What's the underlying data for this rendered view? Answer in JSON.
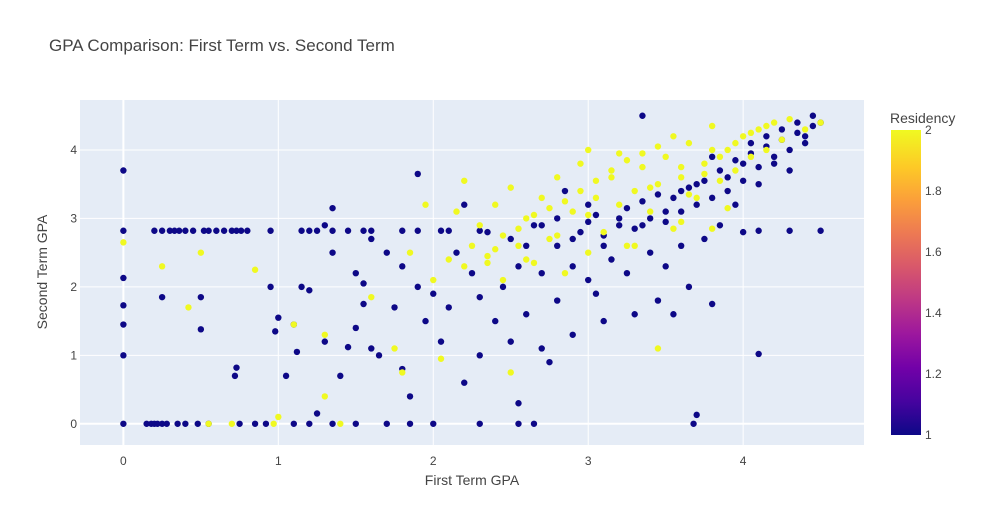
{
  "chart_data": {
    "type": "scatter",
    "title": "GPA Comparison: First Term vs. Second Term",
    "xlabel": "First Term GPA",
    "ylabel": "Second Term GPA",
    "xlim": [
      -0.28,
      4.78
    ],
    "ylim": [
      -0.31,
      4.73
    ],
    "x_ticks": [
      0,
      1,
      2,
      3,
      4
    ],
    "y_ticks": [
      0,
      1,
      2,
      3,
      4
    ],
    "grid": true,
    "colorbar": {
      "title": "Residency",
      "min": 1,
      "max": 2,
      "ticks": [
        "1",
        "1.2",
        "1.4",
        "1.6",
        "1.8",
        "2"
      ],
      "colorscale": [
        "#0d0887",
        "#46039f",
        "#7201a8",
        "#9c179e",
        "#bd3786",
        "#d8576b",
        "#ed7953",
        "#fb9f3a",
        "#fdca26",
        "#f0f921"
      ]
    },
    "colors": {
      "residency_1": "#0d0887",
      "residency_2": "#f0f921",
      "plot_bg": "#e5ecf6",
      "grid": "#ffffff"
    },
    "series": [
      {
        "residency": 1,
        "points": [
          [
            0,
            0
          ],
          [
            0,
            1.0
          ],
          [
            0,
            1.45
          ],
          [
            0,
            1.73
          ],
          [
            0,
            2.13
          ],
          [
            0,
            2.82
          ],
          [
            0,
            3.7
          ],
          [
            0.15,
            0
          ],
          [
            0.18,
            0
          ],
          [
            0.2,
            0
          ],
          [
            0.22,
            0
          ],
          [
            0.25,
            0
          ],
          [
            0.28,
            0
          ],
          [
            0.35,
            0
          ],
          [
            0.4,
            0
          ],
          [
            0.48,
            0
          ],
          [
            0.55,
            0
          ],
          [
            0.75,
            0
          ],
          [
            0.85,
            0
          ],
          [
            0.92,
            0
          ],
          [
            1.1,
            0
          ],
          [
            1.2,
            0
          ],
          [
            1.35,
            0
          ],
          [
            1.5,
            0
          ],
          [
            1.7,
            0
          ],
          [
            1.85,
            0
          ],
          [
            2.0,
            0
          ],
          [
            2.3,
            0
          ],
          [
            2.55,
            0
          ],
          [
            2.65,
            0
          ],
          [
            3.68,
            0
          ],
          [
            3.7,
            0.13
          ],
          [
            0.2,
            2.82
          ],
          [
            0.25,
            2.82
          ],
          [
            0.3,
            2.82
          ],
          [
            0.33,
            2.82
          ],
          [
            0.36,
            2.82
          ],
          [
            0.4,
            2.82
          ],
          [
            0.45,
            2.82
          ],
          [
            0.52,
            2.82
          ],
          [
            0.55,
            2.82
          ],
          [
            0.6,
            2.82
          ],
          [
            0.65,
            2.82
          ],
          [
            0.7,
            2.82
          ],
          [
            0.73,
            2.82
          ],
          [
            0.76,
            2.82
          ],
          [
            0.8,
            2.82
          ],
          [
            0.95,
            2.82
          ],
          [
            1.15,
            2.82
          ],
          [
            1.2,
            2.82
          ],
          [
            1.25,
            2.82
          ],
          [
            1.35,
            2.82
          ],
          [
            1.45,
            2.82
          ],
          [
            1.55,
            2.82
          ],
          [
            1.6,
            2.82
          ],
          [
            1.8,
            2.82
          ],
          [
            1.9,
            2.82
          ],
          [
            2.05,
            2.82
          ],
          [
            2.1,
            2.82
          ],
          [
            2.3,
            2.82
          ],
          [
            4.1,
            2.82
          ],
          [
            4.3,
            2.82
          ],
          [
            4.5,
            2.82
          ],
          [
            0.25,
            1.85
          ],
          [
            0.5,
            1.85
          ],
          [
            0.5,
            1.38
          ],
          [
            0.72,
            0.7
          ],
          [
            0.73,
            0.82
          ],
          [
            0.95,
            2.0
          ],
          [
            1.0,
            1.55
          ],
          [
            0.98,
            1.35
          ],
          [
            1.05,
            0.7
          ],
          [
            1.1,
            1.45
          ],
          [
            1.12,
            1.05
          ],
          [
            1.15,
            2.0
          ],
          [
            1.2,
            1.95
          ],
          [
            1.25,
            0.15
          ],
          [
            1.3,
            2.9
          ],
          [
            1.3,
            1.2
          ],
          [
            1.35,
            3.15
          ],
          [
            1.35,
            2.5
          ],
          [
            1.4,
            0.7
          ],
          [
            1.45,
            1.12
          ],
          [
            1.5,
            2.2
          ],
          [
            1.5,
            1.4
          ],
          [
            1.55,
            1.75
          ],
          [
            1.55,
            2.05
          ],
          [
            1.6,
            1.1
          ],
          [
            1.6,
            2.7
          ],
          [
            1.65,
            1.0
          ],
          [
            1.7,
            2.5
          ],
          [
            1.75,
            1.7
          ],
          [
            1.8,
            2.3
          ],
          [
            1.8,
            0.8
          ],
          [
            1.85,
            0.4
          ],
          [
            1.9,
            3.65
          ],
          [
            1.9,
            2.0
          ],
          [
            1.95,
            1.5
          ],
          [
            2.0,
            1.9
          ],
          [
            2.05,
            1.2
          ],
          [
            2.1,
            1.7
          ],
          [
            2.15,
            2.5
          ],
          [
            2.2,
            0.6
          ],
          [
            2.2,
            3.2
          ],
          [
            2.25,
            2.2
          ],
          [
            2.3,
            1.0
          ],
          [
            2.3,
            1.85
          ],
          [
            2.35,
            2.8
          ],
          [
            2.4,
            1.5
          ],
          [
            2.45,
            2.0
          ],
          [
            2.5,
            2.7
          ],
          [
            2.5,
            1.2
          ],
          [
            2.55,
            2.3
          ],
          [
            2.55,
            0.3
          ],
          [
            2.6,
            1.6
          ],
          [
            2.65,
            2.9
          ],
          [
            2.7,
            1.1
          ],
          [
            2.7,
            2.2
          ],
          [
            2.75,
            0.9
          ],
          [
            2.8,
            1.8
          ],
          [
            2.8,
            2.6
          ],
          [
            2.85,
            3.4
          ],
          [
            2.9,
            2.3
          ],
          [
            2.9,
            1.3
          ],
          [
            2.95,
            2.8
          ],
          [
            3.0,
            2.1
          ],
          [
            3.0,
            3.2
          ],
          [
            3.05,
            1.9
          ],
          [
            3.1,
            2.6
          ],
          [
            3.1,
            1.5
          ],
          [
            3.15,
            2.4
          ],
          [
            3.2,
            3.0
          ],
          [
            3.25,
            2.2
          ],
          [
            3.3,
            1.6
          ],
          [
            3.35,
            4.5
          ],
          [
            3.35,
            2.9
          ],
          [
            3.4,
            2.5
          ],
          [
            3.45,
            1.8
          ],
          [
            3.5,
            3.1
          ],
          [
            3.5,
            2.3
          ],
          [
            3.55,
            1.6
          ],
          [
            3.6,
            2.6
          ],
          [
            3.6,
            3.4
          ],
          [
            3.65,
            2.0
          ],
          [
            3.7,
            3.5
          ],
          [
            3.75,
            2.7
          ],
          [
            3.8,
            1.75
          ],
          [
            3.8,
            3.9
          ],
          [
            3.85,
            2.9
          ],
          [
            3.9,
            3.6
          ],
          [
            3.95,
            3.2
          ],
          [
            4.0,
            3.8
          ],
          [
            4.0,
            2.8
          ],
          [
            4.05,
            4.1
          ],
          [
            4.1,
            1.02
          ],
          [
            4.1,
            3.5
          ],
          [
            4.15,
            4.2
          ],
          [
            4.2,
            3.9
          ],
          [
            4.25,
            4.3
          ],
          [
            4.3,
            3.7
          ],
          [
            4.35,
            4.4
          ],
          [
            4.4,
            4.2
          ],
          [
            4.45,
            4.5
          ],
          [
            4.5,
            4.4
          ],
          [
            2.6,
            2.6
          ],
          [
            2.7,
            2.9
          ],
          [
            2.8,
            3.0
          ],
          [
            2.9,
            2.7
          ],
          [
            3.0,
            2.95
          ],
          [
            3.05,
            3.05
          ],
          [
            3.1,
            2.75
          ],
          [
            3.2,
            2.9
          ],
          [
            3.25,
            3.15
          ],
          [
            3.3,
            2.85
          ],
          [
            3.35,
            3.25
          ],
          [
            3.4,
            3.0
          ],
          [
            3.45,
            3.35
          ],
          [
            3.5,
            2.95
          ],
          [
            3.55,
            3.3
          ],
          [
            3.6,
            3.1
          ],
          [
            3.65,
            3.45
          ],
          [
            3.7,
            3.2
          ],
          [
            3.75,
            3.55
          ],
          [
            3.8,
            3.3
          ],
          [
            3.85,
            3.7
          ],
          [
            3.9,
            3.4
          ],
          [
            3.95,
            3.85
          ],
          [
            4.0,
            3.55
          ],
          [
            4.05,
            3.95
          ],
          [
            4.1,
            3.75
          ],
          [
            4.15,
            4.05
          ],
          [
            4.2,
            3.8
          ],
          [
            4.25,
            4.15
          ],
          [
            4.3,
            4.0
          ],
          [
            4.35,
            4.25
          ],
          [
            4.4,
            4.1
          ],
          [
            4.45,
            4.35
          ]
        ]
      },
      {
        "residency": 2,
        "points": [
          [
            0,
            2.65
          ],
          [
            0.25,
            2.3
          ],
          [
            0.42,
            1.7
          ],
          [
            0.5,
            2.5
          ],
          [
            0.55,
            0
          ],
          [
            0.7,
            0
          ],
          [
            0.85,
            2.25
          ],
          [
            0.97,
            0
          ],
          [
            1.0,
            0.1
          ],
          [
            1.1,
            1.45
          ],
          [
            1.3,
            0.4
          ],
          [
            1.3,
            1.3
          ],
          [
            1.4,
            0
          ],
          [
            1.6,
            1.85
          ],
          [
            1.75,
            1.1
          ],
          [
            1.8,
            0.75
          ],
          [
            1.85,
            2.5
          ],
          [
            1.95,
            3.2
          ],
          [
            2.0,
            2.1
          ],
          [
            2.05,
            0.95
          ],
          [
            2.1,
            2.4
          ],
          [
            2.15,
            3.1
          ],
          [
            2.2,
            3.55
          ],
          [
            2.25,
            2.6
          ],
          [
            2.3,
            2.9
          ],
          [
            2.35,
            2.35
          ],
          [
            2.4,
            3.2
          ],
          [
            2.45,
            2.1
          ],
          [
            2.5,
            3.45
          ],
          [
            2.5,
            0.75
          ],
          [
            2.55,
            2.6
          ],
          [
            2.6,
            3.0
          ],
          [
            2.65,
            2.35
          ],
          [
            2.7,
            3.3
          ],
          [
            2.75,
            2.7
          ],
          [
            2.8,
            3.6
          ],
          [
            2.85,
            2.2
          ],
          [
            2.9,
            3.1
          ],
          [
            2.95,
            3.8
          ],
          [
            3.0,
            2.5
          ],
          [
            3.0,
            4.0
          ],
          [
            3.05,
            3.3
          ],
          [
            3.1,
            2.8
          ],
          [
            3.15,
            3.6
          ],
          [
            3.2,
            3.95
          ],
          [
            3.25,
            2.6
          ],
          [
            3.3,
            3.4
          ],
          [
            3.35,
            3.75
          ],
          [
            3.4,
            3.1
          ],
          [
            3.45,
            3.5
          ],
          [
            3.45,
            1.1
          ],
          [
            3.5,
            3.9
          ],
          [
            3.55,
            2.85
          ],
          [
            3.6,
            3.6
          ],
          [
            3.65,
            4.1
          ],
          [
            3.7,
            3.3
          ],
          [
            3.75,
            3.8
          ],
          [
            3.8,
            2.85
          ],
          [
            3.8,
            4.35
          ],
          [
            3.85,
            3.55
          ],
          [
            3.9,
            4.0
          ],
          [
            3.95,
            3.7
          ],
          [
            4.0,
            4.2
          ],
          [
            4.05,
            3.9
          ],
          [
            4.1,
            4.3
          ],
          [
            4.15,
            4.0
          ],
          [
            4.2,
            4.4
          ],
          [
            4.25,
            4.15
          ],
          [
            4.3,
            4.45
          ],
          [
            4.4,
            4.3
          ],
          [
            4.5,
            4.4
          ],
          [
            2.35,
            2.45
          ],
          [
            2.45,
            2.75
          ],
          [
            2.55,
            2.85
          ],
          [
            2.65,
            3.05
          ],
          [
            2.75,
            3.15
          ],
          [
            2.85,
            3.25
          ],
          [
            2.95,
            3.4
          ],
          [
            3.05,
            3.55
          ],
          [
            3.15,
            3.7
          ],
          [
            3.25,
            3.85
          ],
          [
            3.35,
            3.95
          ],
          [
            3.45,
            4.05
          ],
          [
            3.55,
            4.2
          ],
          [
            3.65,
            3.35
          ],
          [
            3.75,
            3.65
          ],
          [
            3.85,
            3.9
          ],
          [
            3.95,
            4.1
          ],
          [
            4.05,
            4.25
          ],
          [
            4.15,
            4.35
          ],
          [
            3.3,
            2.6
          ],
          [
            3.6,
            2.95
          ],
          [
            3.9,
            3.15
          ],
          [
            2.2,
            2.3
          ],
          [
            2.4,
            2.55
          ],
          [
            2.6,
            2.4
          ],
          [
            2.8,
            2.75
          ],
          [
            3.0,
            3.05
          ],
          [
            3.2,
            3.2
          ],
          [
            3.4,
            3.45
          ],
          [
            3.6,
            3.75
          ],
          [
            3.8,
            4.0
          ]
        ]
      }
    ]
  }
}
